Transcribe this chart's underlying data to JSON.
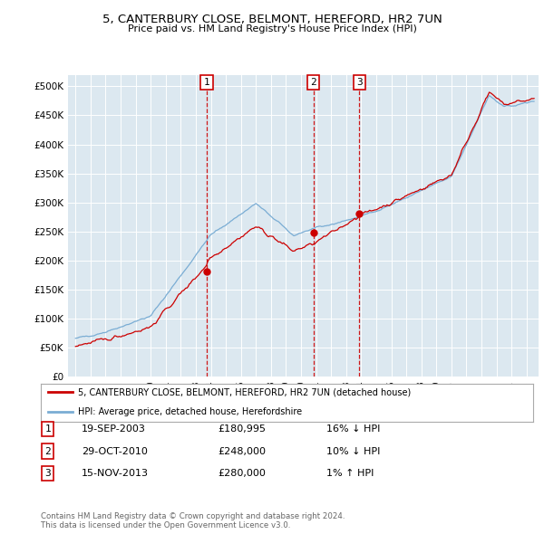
{
  "title_line1": "5, CANTERBURY CLOSE, BELMONT, HEREFORD, HR2 7UN",
  "title_line2": "Price paid vs. HM Land Registry's House Price Index (HPI)",
  "plot_bg_color": "#dce8f0",
  "ylim": [
    0,
    520000
  ],
  "yticks": [
    0,
    50000,
    100000,
    150000,
    200000,
    250000,
    300000,
    350000,
    400000,
    450000,
    500000
  ],
  "ytick_labels": [
    "£0",
    "£50K",
    "£100K",
    "£150K",
    "£200K",
    "£250K",
    "£300K",
    "£350K",
    "£400K",
    "£450K",
    "£500K"
  ],
  "xlim_min": 1994.5,
  "xlim_max": 2025.8,
  "sale_dates": [
    2003.72,
    2010.83,
    2013.88
  ],
  "sale_prices": [
    180995,
    248000,
    280000
  ],
  "sale_labels": [
    "1",
    "2",
    "3"
  ],
  "legend_red_label": "5, CANTERBURY CLOSE, BELMONT, HEREFORD, HR2 7UN (detached house)",
  "legend_blue_label": "HPI: Average price, detached house, Herefordshire",
  "table_rows": [
    [
      "1",
      "19-SEP-2003",
      "£180,995",
      "16% ↓ HPI"
    ],
    [
      "2",
      "29-OCT-2010",
      "£248,000",
      "10% ↓ HPI"
    ],
    [
      "3",
      "15-NOV-2013",
      "£280,000",
      "1% ↑ HPI"
    ]
  ],
  "footnote": "Contains HM Land Registry data © Crown copyright and database right 2024.\nThis data is licensed under the Open Government Licence v3.0.",
  "red_color": "#cc0000",
  "blue_color": "#7aadd4",
  "dashed_color": "#cc0000"
}
